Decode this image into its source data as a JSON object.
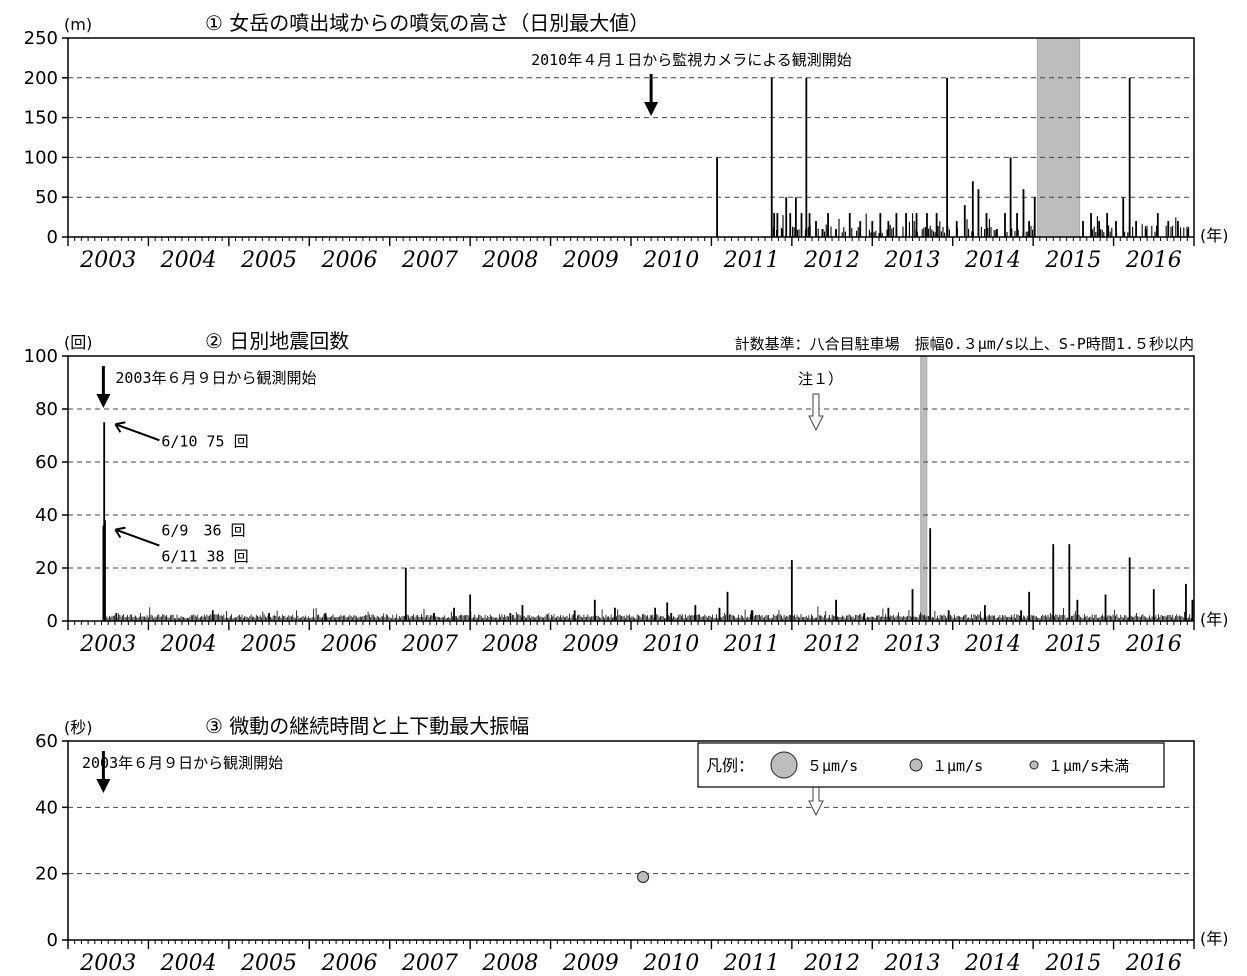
{
  "chart_data": [
    {
      "type": "bar",
      "title": "① 女岳の噴出域からの噴気の高さ（日別最大値）",
      "ylabel": "(m)",
      "xlabel": "(年)",
      "ylim": [
        0,
        250
      ],
      "yticks": [
        0,
        50,
        100,
        150,
        200,
        250
      ],
      "xlim": [
        2003,
        2017
      ],
      "year_labels": [
        "2003",
        "2004",
        "2005",
        "2006",
        "2007",
        "2008",
        "2009",
        "2010",
        "2011",
        "2012",
        "2013",
        "2014",
        "2015",
        "2016"
      ],
      "grid": "dashed horizontal",
      "annotations": [
        {
          "text": "2010年４月１日から監視カメラによる観測開始",
          "x": 2010.25,
          "type": "down-arrow"
        }
      ],
      "shaded_periods": [
        [
          2015.05,
          2015.58
        ]
      ],
      "series": [
        {
          "values": [
            [
              2011.07,
              100
            ],
            [
              2011.75,
              200
            ],
            [
              2011.78,
              30
            ],
            [
              2011.82,
              30
            ],
            [
              2011.88,
              10
            ],
            [
              2011.93,
              50
            ],
            [
              2011.98,
              30
            ],
            [
              2012.05,
              50
            ],
            [
              2012.12,
              30
            ],
            [
              2012.18,
              200
            ],
            [
              2012.22,
              30
            ],
            [
              2012.3,
              20
            ],
            [
              2012.38,
              10
            ],
            [
              2012.45,
              30
            ],
            [
              2012.55,
              10
            ],
            [
              2012.72,
              30
            ],
            [
              2012.85,
              20
            ],
            [
              2013.0,
              20
            ],
            [
              2013.1,
              30
            ],
            [
              2013.2,
              20
            ],
            [
              2013.3,
              30
            ],
            [
              2013.42,
              30
            ],
            [
              2013.55,
              30
            ],
            [
              2013.68,
              30
            ],
            [
              2013.8,
              30
            ],
            [
              2013.93,
              200
            ],
            [
              2014.05,
              20
            ],
            [
              2014.15,
              40
            ],
            [
              2014.25,
              70
            ],
            [
              2014.32,
              60
            ],
            [
              2014.42,
              30
            ],
            [
              2014.55,
              10
            ],
            [
              2014.65,
              30
            ],
            [
              2014.72,
              100
            ],
            [
              2014.8,
              30
            ],
            [
              2014.88,
              60
            ],
            [
              2014.95,
              20
            ],
            [
              2015.02,
              50
            ],
            [
              2015.62,
              20
            ],
            [
              2015.72,
              30
            ],
            [
              2015.82,
              20
            ],
            [
              2015.92,
              30
            ],
            [
              2016.03,
              20
            ],
            [
              2016.12,
              50
            ],
            [
              2016.2,
              200
            ],
            [
              2016.28,
              20
            ],
            [
              2016.4,
              10
            ],
            [
              2016.55,
              30
            ],
            [
              2016.68,
              20
            ],
            [
              2016.8,
              20
            ],
            [
              2016.92,
              10
            ]
          ]
        }
      ]
    },
    {
      "type": "bar",
      "title": "② 日別地震回数",
      "subtitle": "計数基準：八合目駐車場　振幅0.３μm/s以上、S-P時間1.５秒以内",
      "ylabel": "(回)",
      "xlabel": "(年)",
      "ylim": [
        0,
        100
      ],
      "yticks": [
        0,
        20,
        40,
        60,
        80,
        100
      ],
      "xlim": [
        2003,
        2017
      ],
      "year_labels": [
        "2003",
        "2004",
        "2005",
        "2006",
        "2007",
        "2008",
        "2009",
        "2010",
        "2011",
        "2012",
        "2013",
        "2014",
        "2015",
        "2016"
      ],
      "grid": "dashed horizontal",
      "annotations": [
        {
          "text": "2003年６月９日から観測開始",
          "x": 2003.44,
          "type": "down-arrow"
        },
        {
          "text": "注１）",
          "x": 2012.3,
          "type": "hollow-down-arrow"
        },
        {
          "text": "6/10 75 回",
          "x": 2003.44,
          "y": 75
        },
        {
          "text": "6/9　36 回",
          "x": 2003.44,
          "y": 36
        },
        {
          "text": "6/11 38 回",
          "x": 2003.44,
          "y": 36
        }
      ],
      "shaded_periods": [
        [
          2013.6,
          2013.68
        ]
      ],
      "series": [
        {
          "values": [
            [
              2003.44,
              36
            ],
            [
              2003.45,
              75
            ],
            [
              2003.46,
              38
            ],
            [
              2003.6,
              3
            ],
            [
              2004.8,
              4
            ],
            [
              2005.5,
              3
            ],
            [
              2006.2,
              3
            ],
            [
              2007.2,
              20
            ],
            [
              2007.55,
              3
            ],
            [
              2007.8,
              5
            ],
            [
              2008.0,
              10
            ],
            [
              2008.5,
              3
            ],
            [
              2008.65,
              6
            ],
            [
              2009.3,
              4
            ],
            [
              2009.55,
              8
            ],
            [
              2009.8,
              5
            ],
            [
              2010.3,
              5
            ],
            [
              2010.45,
              7
            ],
            [
              2010.5,
              3
            ],
            [
              2010.8,
              6
            ],
            [
              2011.1,
              5
            ],
            [
              2011.2,
              11
            ],
            [
              2011.5,
              4
            ],
            [
              2012.0,
              23
            ],
            [
              2012.55,
              8
            ],
            [
              2012.9,
              3
            ],
            [
              2013.2,
              5
            ],
            [
              2013.5,
              12
            ],
            [
              2013.72,
              35
            ],
            [
              2013.95,
              4
            ],
            [
              2014.4,
              6
            ],
            [
              2014.85,
              4
            ],
            [
              2014.95,
              11
            ],
            [
              2015.25,
              29
            ],
            [
              2015.45,
              29
            ],
            [
              2015.55,
              8
            ],
            [
              2015.9,
              10
            ],
            [
              2016.2,
              24
            ],
            [
              2016.5,
              12
            ],
            [
              2016.9,
              14
            ],
            [
              2016.98,
              8
            ]
          ]
        }
      ]
    },
    {
      "type": "scatter",
      "title": "③ 微動の継続時間と上下動最大振幅",
      "ylabel": "(秒)",
      "xlabel": "(年)",
      "ylim": [
        0,
        60
      ],
      "yticks": [
        0,
        20,
        40,
        60
      ],
      "xlim": [
        2003,
        2017
      ],
      "year_labels": [
        "2003",
        "2004",
        "2005",
        "2006",
        "2007",
        "2008",
        "2009",
        "2010",
        "2011",
        "2012",
        "2013",
        "2014",
        "2015",
        "2016"
      ],
      "grid": "dashed horizontal",
      "legend": {
        "placement": "top-right",
        "title": "凡例：",
        "items": [
          {
            "label": "５μm/s",
            "size": "large"
          },
          {
            "label": "１μm/s",
            "size": "medium"
          },
          {
            "label": "１μm/s未満",
            "size": "small"
          }
        ]
      },
      "annotations": [
        {
          "text": "2003年６月９日から観測開始",
          "x": 2003.44,
          "type": "down-arrow"
        },
        {
          "text": "注１）",
          "x": 2012.3,
          "type": "hollow-down-arrow"
        }
      ],
      "series": [
        {
          "points": [
            [
              2010.15,
              19
            ]
          ]
        }
      ]
    }
  ]
}
